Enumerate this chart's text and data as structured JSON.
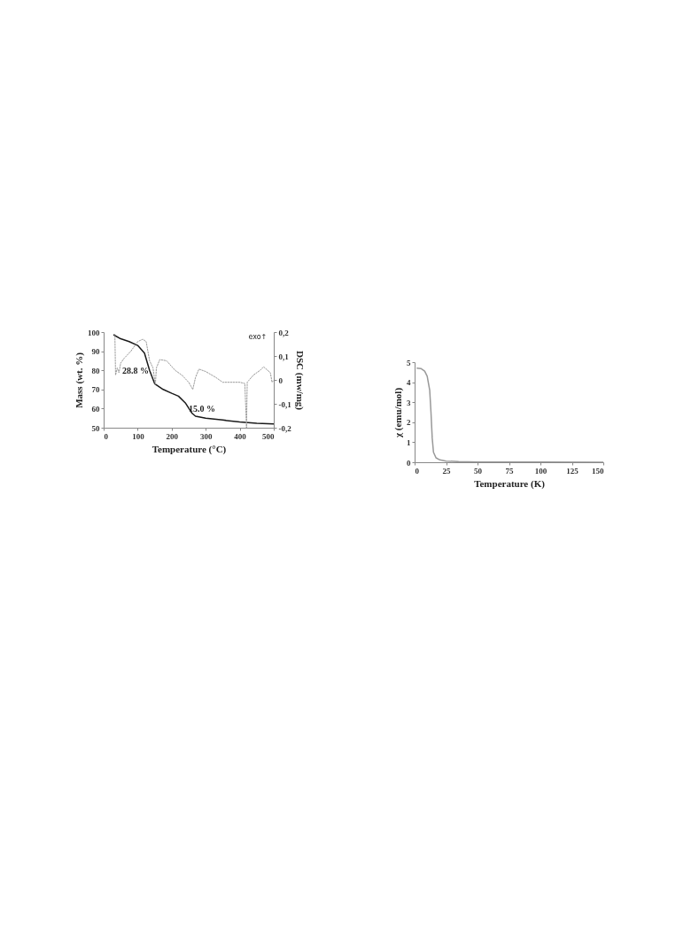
{
  "chart_data": [
    {
      "type": "line",
      "xlabel": "Temperature (°C)",
      "ylabel": "Mass (wt. %)",
      "y2label": "DSC (mw/mg)",
      "xlim": [
        0,
        500
      ],
      "xticks": [
        0,
        100,
        200,
        300,
        400,
        500
      ],
      "ylim": [
        50,
        100
      ],
      "yticks": [
        50,
        60,
        70,
        80,
        90,
        100
      ],
      "y2lim": [
        -0.2,
        0.2
      ],
      "y2ticks": [
        {
          "value": -0.2,
          "label": "-0,2"
        },
        {
          "value": -0.1,
          "label": "-0,1"
        },
        0,
        {
          "value": 0.1,
          "label": "0,1"
        },
        {
          "value": 0.2,
          "label": "0,2"
        }
      ],
      "grid": false,
      "marker": "none",
      "series": [
        {
          "color": "#1a1a1a",
          "line_style": "solid",
          "x": [
            30,
            50,
            75,
            100,
            120,
            135,
            150,
            175,
            200,
            220,
            240,
            260,
            270,
            300,
            350,
            400,
            450,
            500
          ],
          "values": [
            98.5,
            96.5,
            95,
            93,
            89,
            80,
            73,
            70,
            68,
            66.5,
            63,
            57.5,
            56,
            55,
            54,
            53,
            52.3,
            52
          ]
        },
        {
          "color": "#999999",
          "line_style": "dotted",
          "axis": "y2",
          "x": [
            30,
            33,
            35,
            40,
            45,
            50,
            60,
            80,
            100,
            115,
            125,
            135,
            145,
            152,
            155,
            165,
            185,
            210,
            230,
            250,
            262,
            270,
            280,
            300,
            330,
            350,
            400,
            415,
            420,
            422,
            440,
            460,
            470,
            490,
            495,
            500
          ],
          "values": [
            0.19,
            0.19,
            0.02,
            0.05,
            0.03,
            0.07,
            0.09,
            0.12,
            0.16,
            0.17,
            0.16,
            0.08,
            0.05,
            -0.02,
            0.05,
            0.085,
            0.08,
            0.04,
            0.02,
            -0.01,
            -0.04,
            0.01,
            0.045,
            0.035,
            0.01,
            -0.01,
            -0.01,
            -0.015,
            -0.2,
            -0.01,
            0.02,
            0.04,
            0.055,
            0.03,
            -0.01,
            0
          ]
        }
      ],
      "annotations": [
        "28.8 %",
        "15.0 %",
        "exo↑"
      ]
    },
    {
      "type": "line",
      "xlabel": "Temperature (K)",
      "ylabel": "χ (emu/mol)",
      "xlim": [
        0,
        150
      ],
      "xticks": [
        0,
        25,
        50,
        75,
        100,
        125,
        150
      ],
      "ylim": [
        0,
        5
      ],
      "yticks": [
        0,
        1,
        2,
        3,
        4,
        5
      ],
      "grid": false,
      "marker": "none",
      "series": [
        {
          "color": "#999999",
          "line_style": "solid",
          "x": [
            2,
            5,
            8,
            10,
            12,
            13,
            14,
            15,
            17,
            20,
            25,
            35,
            50,
            100,
            150
          ],
          "values": [
            4.7,
            4.68,
            4.55,
            4.3,
            3.6,
            2.5,
            1.2,
            0.5,
            0.22,
            0.12,
            0.06,
            0.03,
            0.01,
            0.01,
            0
          ]
        }
      ]
    }
  ]
}
